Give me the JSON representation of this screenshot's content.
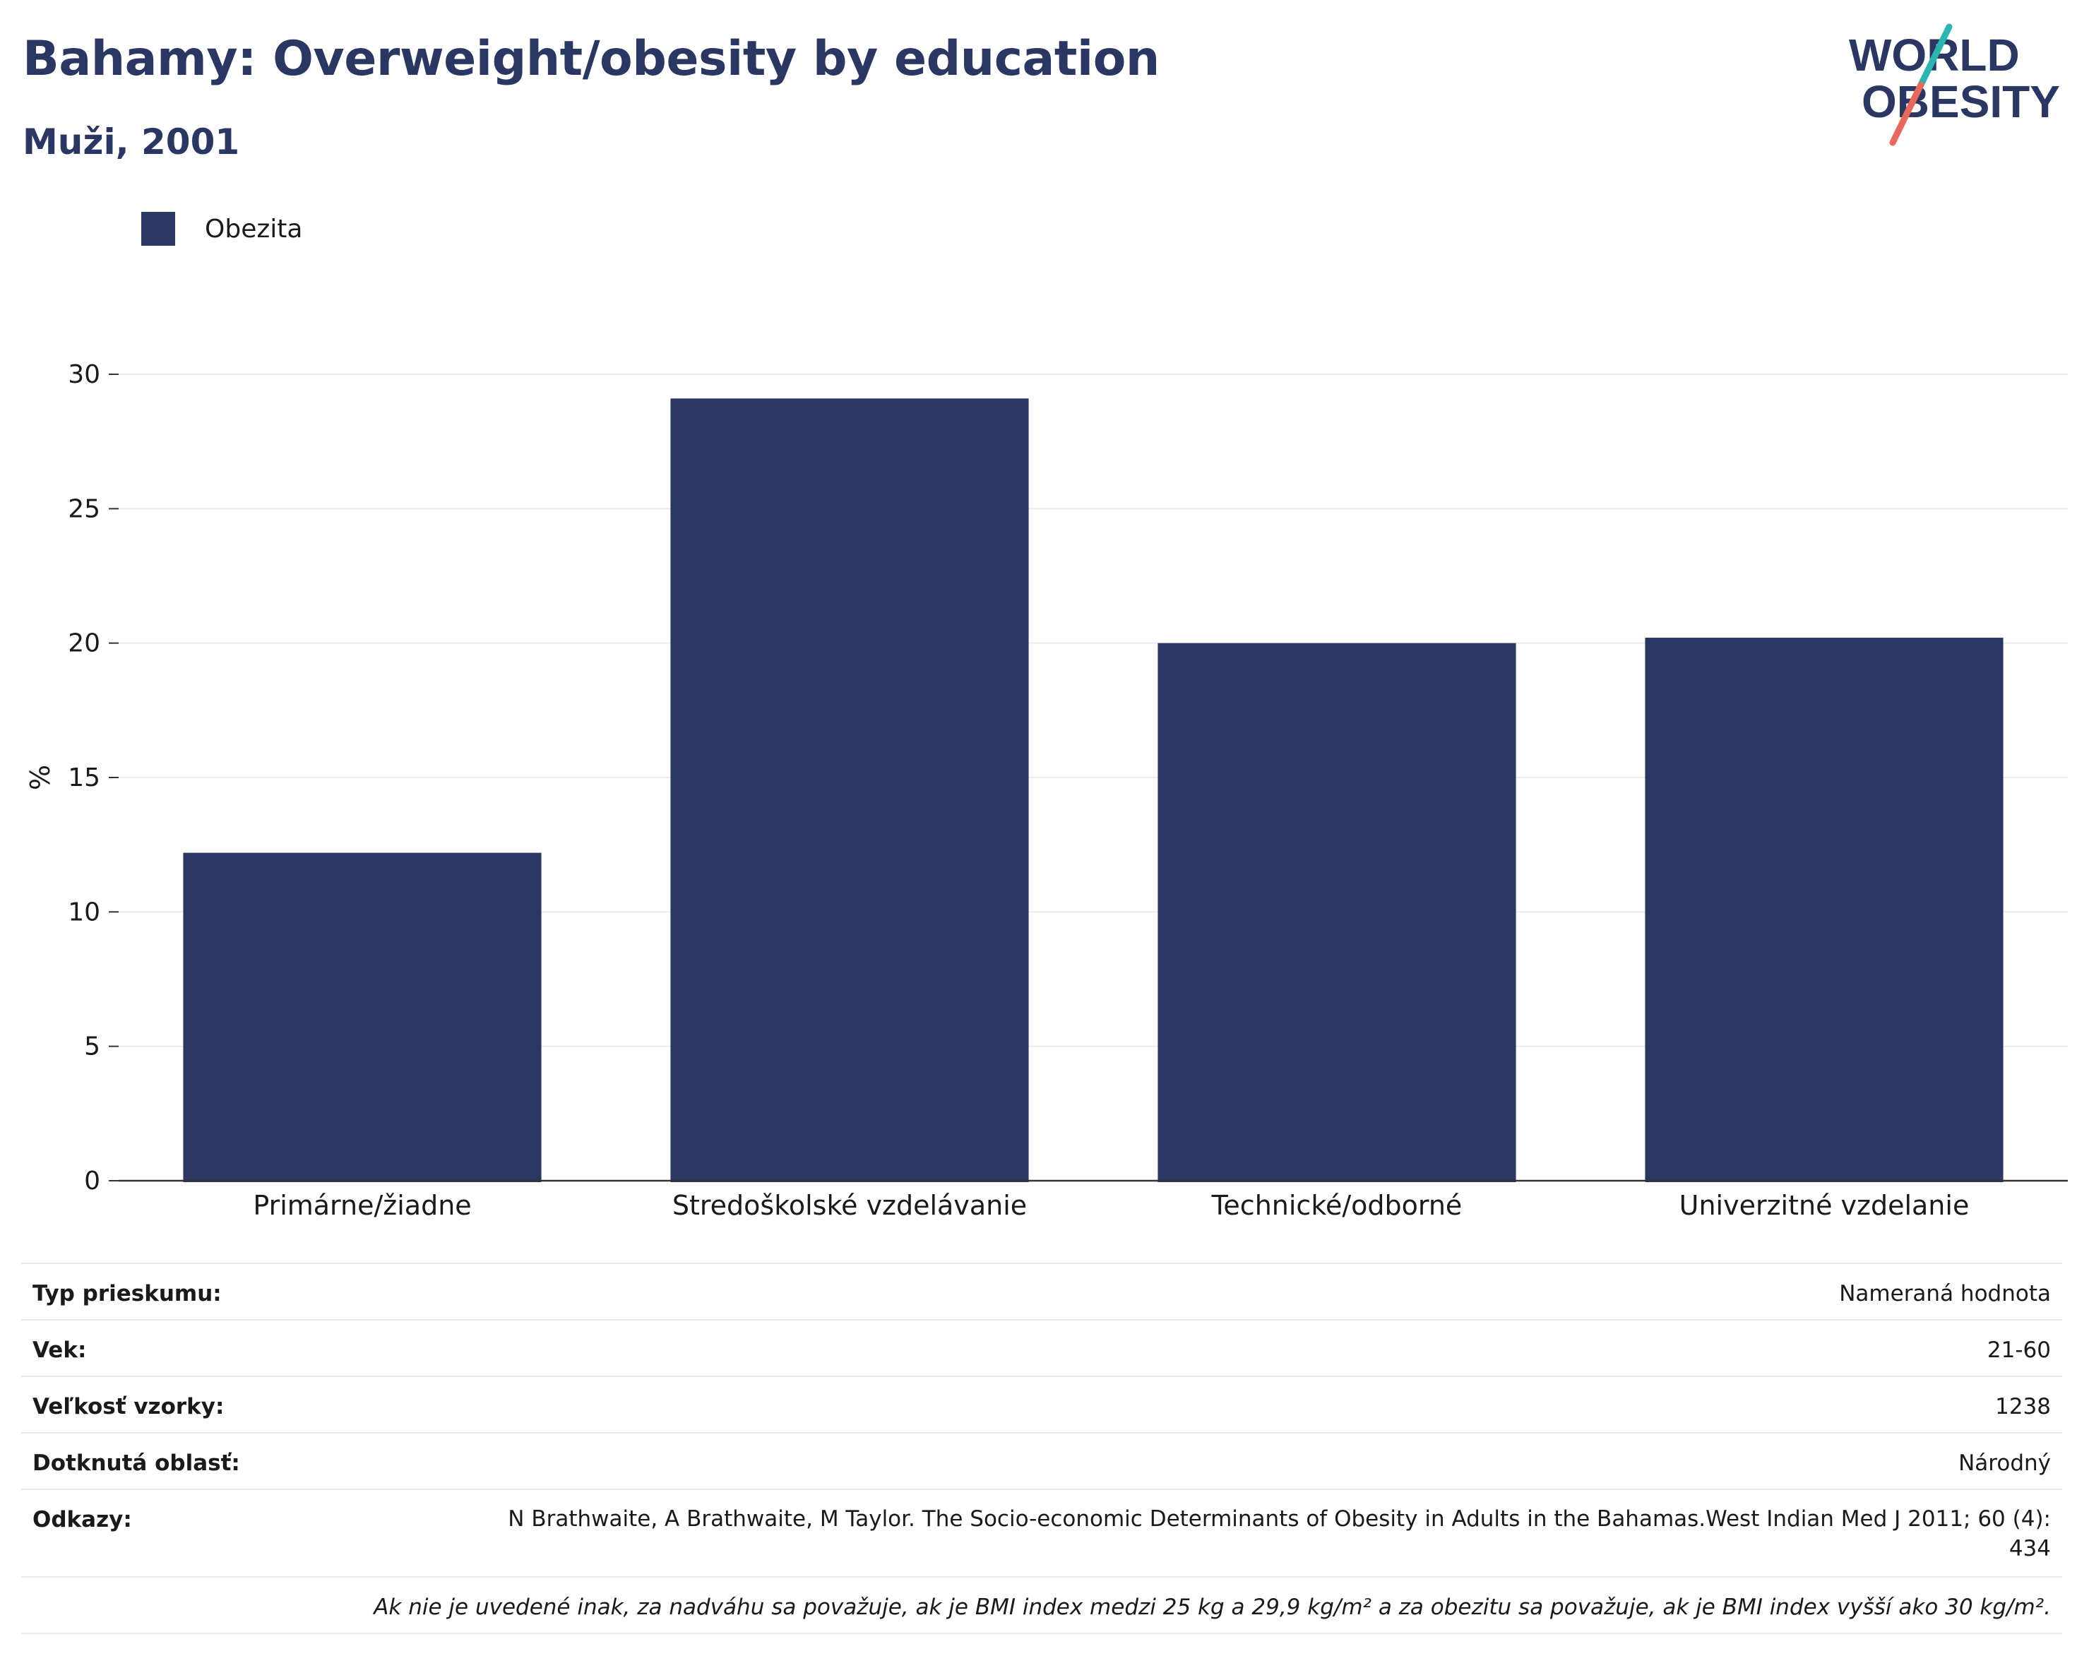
{
  "header": {
    "title": "Bahamy: Overweight/obesity by education",
    "subtitle": "Muži, 2001"
  },
  "logo": {
    "line1": "WORLD",
    "line2": "OBESITY",
    "colors": {
      "text": "#2b3763",
      "slash_teal": "#2bb5b0",
      "slash_coral": "#e8685a"
    }
  },
  "chart_data": {
    "type": "bar",
    "categories": [
      "Primárne/žiadne",
      "Stredoškolské vzdelávanie",
      "Technické/odborné",
      "Univerzitné vzdelanie"
    ],
    "series": [
      {
        "name": "Obezita",
        "values": [
          12.2,
          29.1,
          20.0,
          20.2
        ],
        "color": "#2b3763"
      }
    ],
    "ylabel": "%",
    "ylim": [
      0,
      30
    ],
    "yticks": [
      0,
      5,
      10,
      15,
      20,
      25,
      30
    ],
    "grid": true,
    "legend": "top-left"
  },
  "info": {
    "rows": [
      {
        "label": "Typ prieskumu:",
        "value": "Nameraná hodnota"
      },
      {
        "label": "Vek:",
        "value": "21-60"
      },
      {
        "label": "Veľkosť vzorky:",
        "value": "1238"
      },
      {
        "label": "Dotknutá oblasť:",
        "value": "Národný"
      },
      {
        "label": "Odkazy:",
        "value": "N Brathwaite, A Brathwaite, M Taylor. The Socio-economic Determinants of Obesity in Adults in the Bahamas.West Indian Med J 2011; 60 (4): 434"
      }
    ],
    "footnote": "Ak nie je uvedené inak, za nadváhu sa považuje, ak je BMI index medzi 25 kg a 29,9 kg/m² a za obezitu sa považuje, ak je BMI index vyšší ako 30 kg/m²."
  }
}
